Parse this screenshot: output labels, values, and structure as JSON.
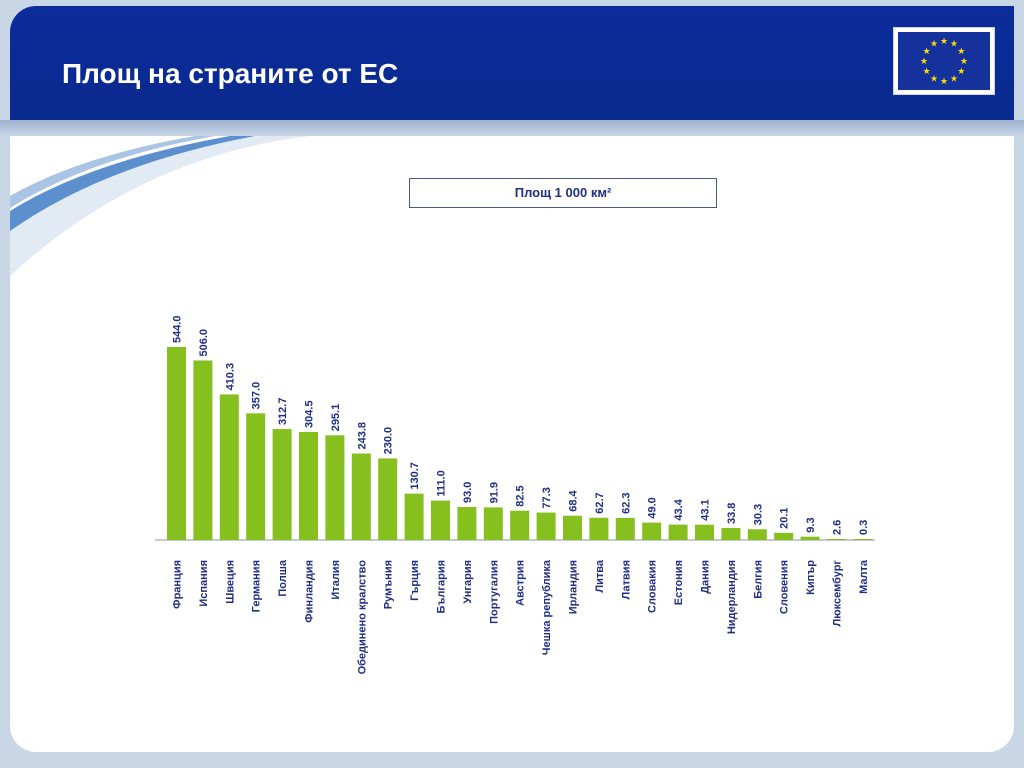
{
  "slide": {
    "title": "Площ на страните от ЕС"
  },
  "colors": {
    "header": "#0a2a8f",
    "bar": "#86c01e",
    "text": "#1f2f86",
    "flag": "#14319c",
    "stars": "#ffdd00"
  },
  "icons": {
    "flag": "eu-flag-icon"
  },
  "chart_data": {
    "type": "bar",
    "legend": "Площ 1 000 км²",
    "categories": [
      "Франция",
      "Испания",
      "Швеция",
      "Германия",
      "Полша",
      "Финландия",
      "Италия",
      "Обединено кралство",
      "Румъния",
      "Гърция",
      "България",
      "Унгария",
      "Португалия",
      "Австрия",
      "Чешка република",
      "Ирландия",
      "Литва",
      "Латвия",
      "Словакия",
      "Естония",
      "Дания",
      "Нидерландия",
      "Белгия",
      "Словения",
      "Кипър",
      "Люксембург",
      "Малта"
    ],
    "values": [
      544.0,
      506.0,
      410.3,
      357.0,
      312.7,
      304.5,
      295.1,
      243.8,
      230.0,
      130.7,
      111.0,
      93.0,
      91.9,
      82.5,
      77.3,
      68.4,
      62.7,
      62.3,
      49.0,
      43.4,
      43.1,
      33.8,
      30.3,
      20.1,
      9.3,
      2.6,
      0.3
    ],
    "labels": [
      "544.0",
      "506.0",
      "410.3",
      "357.0",
      "312.7",
      "304.5",
      "295.1",
      "243.8",
      "230.0",
      "130.7",
      "111.0",
      "93.0",
      "91.9",
      "82.5",
      "77.3",
      "68.4",
      "62.7",
      "62.3",
      "49.0",
      "43.4",
      "43.1",
      "33.8",
      "30.3",
      "20.1",
      "9.3",
      "2.6",
      "0.3"
    ],
    "ylim": [
      0,
      544
    ],
    "grid": false
  }
}
